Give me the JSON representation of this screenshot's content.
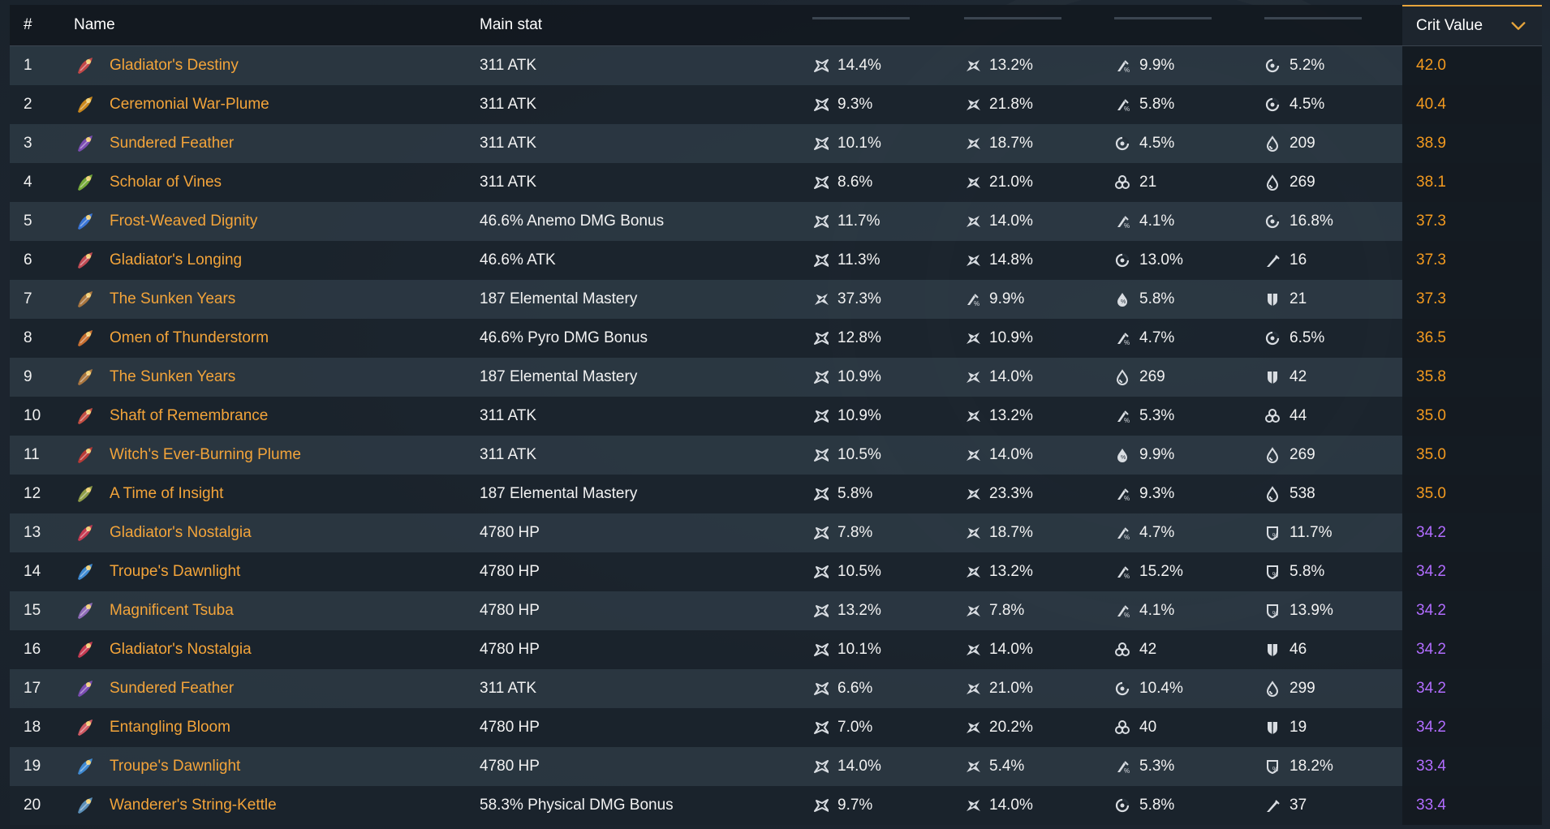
{
  "header": {
    "index_label": "#",
    "name_label": "Name",
    "main_stat_label": "Main stat",
    "crit_value_label": "Crit Value",
    "sort_icon": "chevron-down-icon"
  },
  "colors": {
    "accent": "#e7a53c",
    "name": "#f3a43a",
    "crit_gold": "#f39a1f",
    "crit_purple": "#b16cff"
  },
  "rows": [
    {
      "index": "1",
      "name": "Gladiator's Destiny",
      "icon_color": "#c24848",
      "main_stat": "311 ATK",
      "substats": [
        {
          "icon": "crit-rate-icon",
          "value": "14.4%"
        },
        {
          "icon": "crit-dmg-icon",
          "value": "13.2%"
        },
        {
          "icon": "atk-percent-icon",
          "value": "9.9%"
        },
        {
          "icon": "energy-recharge-icon",
          "value": "5.2%"
        }
      ],
      "crit_value": "42.0",
      "crit_color": "gold"
    },
    {
      "index": "2",
      "name": "Ceremonial War-Plume",
      "icon_color": "#c9871c",
      "main_stat": "311 ATK",
      "substats": [
        {
          "icon": "crit-rate-icon",
          "value": "9.3%"
        },
        {
          "icon": "crit-dmg-icon",
          "value": "21.8%"
        },
        {
          "icon": "atk-percent-icon",
          "value": "5.8%"
        },
        {
          "icon": "energy-recharge-icon",
          "value": "4.5%"
        }
      ],
      "crit_value": "40.4",
      "crit_color": "gold"
    },
    {
      "index": "3",
      "name": "Sundered Feather",
      "icon_color": "#7b4db2",
      "main_stat": "311 ATK",
      "substats": [
        {
          "icon": "crit-rate-icon",
          "value": "10.1%"
        },
        {
          "icon": "crit-dmg-icon",
          "value": "18.7%"
        },
        {
          "icon": "energy-recharge-icon",
          "value": "4.5%"
        },
        {
          "icon": "hp-icon",
          "value": "209"
        }
      ],
      "crit_value": "38.9",
      "crit_color": "gold"
    },
    {
      "index": "4",
      "name": "Scholar of Vines",
      "icon_color": "#75a93a",
      "main_stat": "311 ATK",
      "substats": [
        {
          "icon": "crit-rate-icon",
          "value": "8.6%"
        },
        {
          "icon": "crit-dmg-icon",
          "value": "21.0%"
        },
        {
          "icon": "elemental-mastery-icon",
          "value": "21"
        },
        {
          "icon": "hp-icon",
          "value": "269"
        }
      ],
      "crit_value": "38.1",
      "crit_color": "gold"
    },
    {
      "index": "5",
      "name": "Frost-Weaved Dignity",
      "icon_color": "#3a75d6",
      "main_stat": "46.6% Anemo DMG Bonus",
      "substats": [
        {
          "icon": "crit-rate-icon",
          "value": "11.7%"
        },
        {
          "icon": "crit-dmg-icon",
          "value": "14.0%"
        },
        {
          "icon": "atk-percent-icon",
          "value": "4.1%"
        },
        {
          "icon": "energy-recharge-icon",
          "value": "16.8%"
        }
      ],
      "crit_value": "37.3",
      "crit_color": "gold"
    },
    {
      "index": "6",
      "name": "Gladiator's Longing",
      "icon_color": "#c14b54",
      "main_stat": "46.6% ATK",
      "substats": [
        {
          "icon": "crit-rate-icon",
          "value": "11.3%"
        },
        {
          "icon": "crit-dmg-icon",
          "value": "14.8%"
        },
        {
          "icon": "energy-recharge-icon",
          "value": "13.0%"
        },
        {
          "icon": "atk-icon",
          "value": "16"
        }
      ],
      "crit_value": "37.3",
      "crit_color": "gold"
    },
    {
      "index": "7",
      "name": "The Sunken Years",
      "icon_color": "#a9763f",
      "main_stat": "187 Elemental Mastery",
      "substats": [
        {
          "icon": "crit-dmg-icon",
          "value": "37.3%"
        },
        {
          "icon": "atk-percent-icon",
          "value": "9.9%"
        },
        {
          "icon": "hp-percent-icon",
          "value": "5.8%"
        },
        {
          "icon": "def-icon",
          "value": "21"
        }
      ],
      "crit_value": "37.3",
      "crit_color": "gold"
    },
    {
      "index": "8",
      "name": "Omen of Thunderstorm",
      "icon_color": "#c76f31",
      "main_stat": "46.6% Pyro DMG Bonus",
      "substats": [
        {
          "icon": "crit-rate-icon",
          "value": "12.8%"
        },
        {
          "icon": "crit-dmg-icon",
          "value": "10.9%"
        },
        {
          "icon": "atk-percent-icon",
          "value": "4.7%"
        },
        {
          "icon": "energy-recharge-icon",
          "value": "6.5%"
        }
      ],
      "crit_value": "36.5",
      "crit_color": "gold"
    },
    {
      "index": "9",
      "name": "The Sunken Years",
      "icon_color": "#a9763f",
      "main_stat": "187 Elemental Mastery",
      "substats": [
        {
          "icon": "crit-rate-icon",
          "value": "10.9%"
        },
        {
          "icon": "crit-dmg-icon",
          "value": "14.0%"
        },
        {
          "icon": "hp-icon",
          "value": "269"
        },
        {
          "icon": "def-icon",
          "value": "42"
        }
      ],
      "crit_value": "35.8",
      "crit_color": "gold"
    },
    {
      "index": "10",
      "name": "Shaft of Remembrance",
      "icon_color": "#c34e43",
      "main_stat": "311 ATK",
      "substats": [
        {
          "icon": "crit-rate-icon",
          "value": "10.9%"
        },
        {
          "icon": "crit-dmg-icon",
          "value": "13.2%"
        },
        {
          "icon": "atk-percent-icon",
          "value": "5.3%"
        },
        {
          "icon": "elemental-mastery-icon",
          "value": "44"
        }
      ],
      "crit_value": "35.0",
      "crit_color": "gold"
    },
    {
      "index": "11",
      "name": "Witch's Ever-Burning Plume",
      "icon_color": "#b83a36",
      "main_stat": "311 ATK",
      "substats": [
        {
          "icon": "crit-rate-icon",
          "value": "10.5%"
        },
        {
          "icon": "crit-dmg-icon",
          "value": "14.0%"
        },
        {
          "icon": "hp-percent-icon",
          "value": "9.9%"
        },
        {
          "icon": "hp-icon",
          "value": "269"
        }
      ],
      "crit_value": "35.0",
      "crit_color": "gold"
    },
    {
      "index": "12",
      "name": "A Time of Insight",
      "icon_color": "#8e9b47",
      "main_stat": "187 Elemental Mastery",
      "substats": [
        {
          "icon": "crit-rate-icon",
          "value": "5.8%"
        },
        {
          "icon": "crit-dmg-icon",
          "value": "23.3%"
        },
        {
          "icon": "atk-percent-icon",
          "value": "9.3%"
        },
        {
          "icon": "hp-icon",
          "value": "538"
        }
      ],
      "crit_value": "35.0",
      "crit_color": "gold"
    },
    {
      "index": "13",
      "name": "Gladiator's Nostalgia",
      "icon_color": "#c53b52",
      "main_stat": "4780 HP",
      "substats": [
        {
          "icon": "crit-rate-icon",
          "value": "7.8%"
        },
        {
          "icon": "crit-dmg-icon",
          "value": "18.7%"
        },
        {
          "icon": "atk-percent-icon",
          "value": "4.7%"
        },
        {
          "icon": "def-percent-icon",
          "value": "11.7%"
        }
      ],
      "crit_value": "34.2",
      "crit_color": "purple"
    },
    {
      "index": "14",
      "name": "Troupe's Dawnlight",
      "icon_color": "#3f8ad2",
      "main_stat": "4780 HP",
      "substats": [
        {
          "icon": "crit-rate-icon",
          "value": "10.5%"
        },
        {
          "icon": "crit-dmg-icon",
          "value": "13.2%"
        },
        {
          "icon": "atk-percent-icon",
          "value": "15.2%"
        },
        {
          "icon": "def-percent-icon",
          "value": "5.8%"
        }
      ],
      "crit_value": "34.2",
      "crit_color": "purple"
    },
    {
      "index": "15",
      "name": "Magnificent Tsuba",
      "icon_color": "#8f6bb8",
      "main_stat": "4780 HP",
      "substats": [
        {
          "icon": "crit-rate-icon",
          "value": "13.2%"
        },
        {
          "icon": "crit-dmg-icon",
          "value": "7.8%"
        },
        {
          "icon": "atk-percent-icon",
          "value": "4.1%"
        },
        {
          "icon": "def-percent-icon",
          "value": "13.9%"
        }
      ],
      "crit_value": "34.2",
      "crit_color": "purple"
    },
    {
      "index": "16",
      "name": "Gladiator's Nostalgia",
      "icon_color": "#c53b52",
      "main_stat": "4780 HP",
      "substats": [
        {
          "icon": "crit-rate-icon",
          "value": "10.1%"
        },
        {
          "icon": "crit-dmg-icon",
          "value": "14.0%"
        },
        {
          "icon": "elemental-mastery-icon",
          "value": "42"
        },
        {
          "icon": "def-icon",
          "value": "46"
        }
      ],
      "crit_value": "34.2",
      "crit_color": "purple"
    },
    {
      "index": "17",
      "name": "Sundered Feather",
      "icon_color": "#7b4db2",
      "main_stat": "311 ATK",
      "substats": [
        {
          "icon": "crit-rate-icon",
          "value": "6.6%"
        },
        {
          "icon": "crit-dmg-icon",
          "value": "21.0%"
        },
        {
          "icon": "energy-recharge-icon",
          "value": "10.4%"
        },
        {
          "icon": "hp-icon",
          "value": "299"
        }
      ],
      "crit_value": "34.2",
      "crit_color": "purple"
    },
    {
      "index": "18",
      "name": "Entangling Bloom",
      "icon_color": "#cf5a63",
      "main_stat": "4780 HP",
      "substats": [
        {
          "icon": "crit-rate-icon",
          "value": "7.0%"
        },
        {
          "icon": "crit-dmg-icon",
          "value": "20.2%"
        },
        {
          "icon": "elemental-mastery-icon",
          "value": "40"
        },
        {
          "icon": "def-icon",
          "value": "19"
        }
      ],
      "crit_value": "34.2",
      "crit_color": "purple"
    },
    {
      "index": "19",
      "name": "Troupe's Dawnlight",
      "icon_color": "#3f8ad2",
      "main_stat": "4780 HP",
      "substats": [
        {
          "icon": "crit-rate-icon",
          "value": "14.0%"
        },
        {
          "icon": "crit-dmg-icon",
          "value": "5.4%"
        },
        {
          "icon": "atk-percent-icon",
          "value": "5.3%"
        },
        {
          "icon": "def-percent-icon",
          "value": "18.2%"
        }
      ],
      "crit_value": "33.4",
      "crit_color": "purple"
    },
    {
      "index": "20",
      "name": "Wanderer's String-Kettle",
      "icon_color": "#5b8fb8",
      "main_stat": "58.3% Physical DMG Bonus",
      "substats": [
        {
          "icon": "crit-rate-icon",
          "value": "9.7%"
        },
        {
          "icon": "crit-dmg-icon",
          "value": "14.0%"
        },
        {
          "icon": "energy-recharge-icon",
          "value": "5.8%"
        },
        {
          "icon": "atk-icon",
          "value": "37"
        }
      ],
      "crit_value": "33.4",
      "crit_color": "purple"
    }
  ]
}
